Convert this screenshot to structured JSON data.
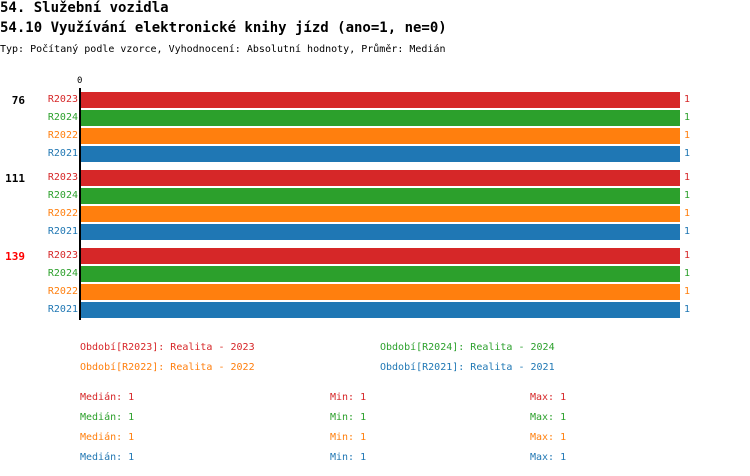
{
  "header": {
    "title": "54. Služební vozidla",
    "subtitle": "54.10 Využívání elektronické knihy jízd (ano=1, ne=0)",
    "meta": "Typ: Počítaný podle vzorce, Vyhodnocení: Absolutní hodnoty, Průměr: Medián"
  },
  "colors": {
    "R2023": "#d62728",
    "R2024": "#2ca02c",
    "R2022": "#ff7f0e",
    "R2021": "#1f77b4"
  },
  "chart_data": {
    "type": "bar",
    "orientation": "horizontal",
    "axis_tick": "0",
    "xlim": [
      0,
      1
    ],
    "groups": [
      {
        "label": "76",
        "label_color": "#000000",
        "bars": [
          {
            "series": "R2023",
            "value": 1,
            "value_label": "1"
          },
          {
            "series": "R2024",
            "value": 1,
            "value_label": "1"
          },
          {
            "series": "R2022",
            "value": 1,
            "value_label": "1"
          },
          {
            "series": "R2021",
            "value": 1,
            "value_label": "1"
          }
        ]
      },
      {
        "label": "111",
        "label_color": "#000000",
        "bars": [
          {
            "series": "R2023",
            "value": 1,
            "value_label": "1"
          },
          {
            "series": "R2024",
            "value": 1,
            "value_label": "1"
          },
          {
            "series": "R2022",
            "value": 1,
            "value_label": "1"
          },
          {
            "series": "R2021",
            "value": 1,
            "value_label": "1"
          }
        ]
      },
      {
        "label": "139",
        "label_color": "#ff0000",
        "bars": [
          {
            "series": "R2023",
            "value": 1,
            "value_label": "1"
          },
          {
            "series": "R2024",
            "value": 1,
            "value_label": "1"
          },
          {
            "series": "R2022",
            "value": 1,
            "value_label": "1"
          },
          {
            "series": "R2021",
            "value": 1,
            "value_label": "1"
          }
        ]
      }
    ],
    "legend": [
      {
        "series": "R2023",
        "text": "Období[R2023]: Realita - 2023"
      },
      {
        "series": "R2024",
        "text": "Období[R2024]: Realita - 2024"
      },
      {
        "series": "R2022",
        "text": "Období[R2022]: Realita - 2022"
      },
      {
        "series": "R2021",
        "text": "Období[R2021]: Realita - 2021"
      }
    ],
    "stats": [
      {
        "series": "R2023",
        "median": "Medián: 1",
        "min": "Min: 1",
        "max": "Max: 1"
      },
      {
        "series": "R2024",
        "median": "Medián: 1",
        "min": "Min: 1",
        "max": "Max: 1"
      },
      {
        "series": "R2022",
        "median": "Medián: 1",
        "min": "Min: 1",
        "max": "Max: 1"
      },
      {
        "series": "R2021",
        "median": "Medián: 1",
        "min": "Min: 1",
        "max": "Max: 1"
      }
    ]
  }
}
